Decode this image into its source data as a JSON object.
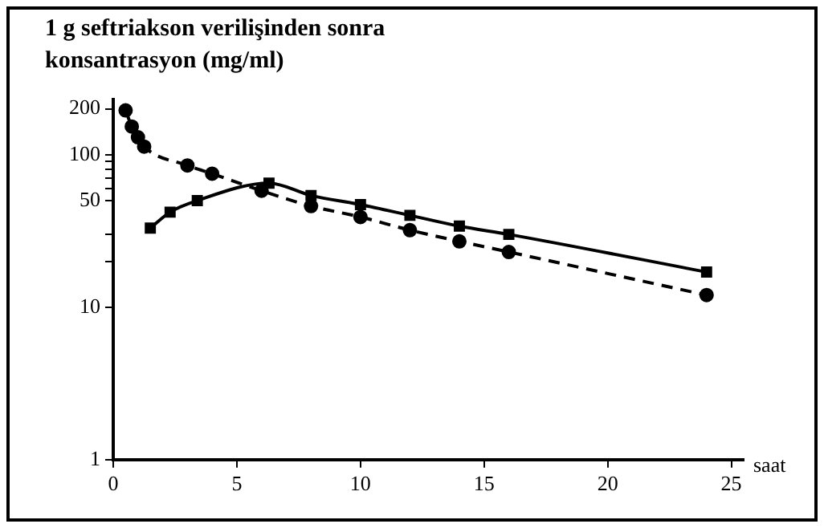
{
  "chart_data": {
    "type": "line",
    "title": "1 g seftriakson verilişinden sonra konsantrasyon (mg/ml)",
    "xlabel": "saat",
    "log": "y",
    "grid": false,
    "legend": false,
    "xlim": [
      0,
      25.5
    ],
    "xticks": [
      0,
      5,
      10,
      15,
      20,
      25
    ],
    "ylim": [
      1,
      230
    ],
    "yticks": [
      1,
      10,
      {
        "value": 20,
        "label": null
      },
      {
        "value": 30,
        "label": null
      },
      50,
      {
        "value": 60,
        "label": null
      },
      {
        "value": 70,
        "label": null
      },
      {
        "value": 80,
        "label": null
      },
      {
        "value": 90,
        "label": null
      },
      100,
      200
    ],
    "series": [
      {
        "color": "#000000",
        "marker": "circle",
        "line_style": "dashed",
        "x": [
          0.5,
          0.75,
          1,
          1.25,
          3,
          4,
          6,
          8,
          10,
          12,
          14,
          16,
          24
        ],
        "values": [
          195,
          153,
          130,
          113,
          85,
          75,
          58,
          46,
          39,
          32,
          27,
          23,
          12
        ]
      },
      {
        "color": "#000000",
        "marker": "square",
        "line_style": "solid",
        "x": [
          1.5,
          2.3,
          3.4,
          6.3,
          8,
          10,
          12,
          14,
          16,
          24
        ],
        "values": [
          33,
          42,
          50,
          65,
          54,
          47,
          40,
          34,
          30,
          17
        ]
      }
    ]
  }
}
